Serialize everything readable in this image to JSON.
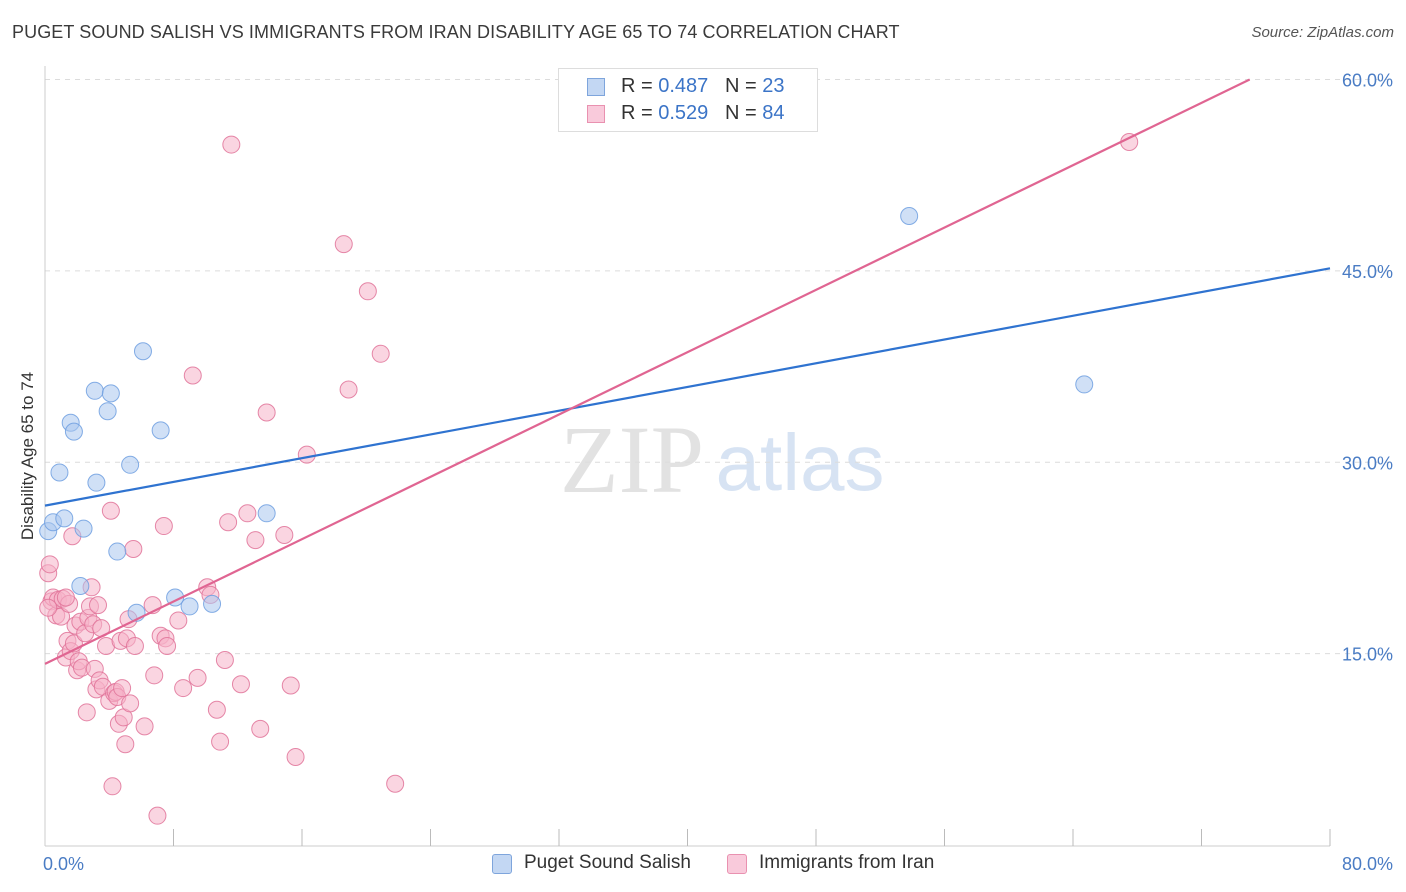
{
  "title": "PUGET SOUND SALISH VS IMMIGRANTS FROM IRAN DISABILITY AGE 65 TO 74 CORRELATION CHART",
  "source": "Source: ZipAtlas.com",
  "watermark": {
    "zip": "ZIP",
    "atlas": "atlas"
  },
  "legend": {
    "rows": [
      {
        "r_label": "R = ",
        "r_value": "0.487",
        "n_label": "N = ",
        "n_value": "23",
        "color": "#a9c6ef"
      },
      {
        "r_label": "R = ",
        "r_value": "0.529",
        "n_label": "N = ",
        "n_value": "84",
        "color": "#f6b3c8"
      }
    ]
  },
  "bottom_legend": [
    "Puget Sound Salish",
    "Immigrants from Iran"
  ],
  "chart_data": {
    "type": "scatter",
    "title": "PUGET SOUND SALISH VS IMMIGRANTS FROM IRAN DISABILITY AGE 65 TO 74 CORRELATION CHART",
    "xlabel": "",
    "ylabel": "Disability Age 65 to 74",
    "xlim": [
      0,
      80
    ],
    "ylim": [
      0,
      60
    ],
    "x_tick_labels": [
      "0.0%",
      "80.0%"
    ],
    "y_ticks": [
      15,
      30,
      45,
      60
    ],
    "y_tick_labels": [
      "15.0%",
      "30.0%",
      "45.0%",
      "60.0%"
    ],
    "grid": true,
    "series": [
      {
        "name": "Puget Sound Salish",
        "color": "#6f9fe0",
        "fill": "#a9c6ef",
        "trend": {
          "x": [
            0,
            80
          ],
          "y": [
            26.6,
            45.2
          ]
        },
        "points": [
          [
            0.2,
            24.6
          ],
          [
            0.5,
            25.3
          ],
          [
            1.2,
            25.6
          ],
          [
            0.9,
            29.2
          ],
          [
            1.6,
            33.1
          ],
          [
            1.8,
            32.4
          ],
          [
            2.4,
            24.8
          ],
          [
            2.2,
            20.3
          ],
          [
            3.1,
            35.6
          ],
          [
            3.2,
            28.4
          ],
          [
            4.1,
            35.4
          ],
          [
            3.9,
            34.0
          ],
          [
            4.5,
            23.0
          ],
          [
            5.3,
            29.8
          ],
          [
            5.7,
            18.2
          ],
          [
            6.1,
            38.7
          ],
          [
            7.2,
            32.5
          ],
          [
            8.1,
            19.4
          ],
          [
            9.0,
            18.7
          ],
          [
            10.4,
            18.9
          ],
          [
            13.8,
            26.0
          ],
          [
            53.8,
            49.3
          ],
          [
            64.7,
            36.1
          ]
        ]
      },
      {
        "name": "Immigrants from Iran",
        "color": "#e07399",
        "fill": "#f6b3c8",
        "trend": {
          "x": [
            0,
            75
          ],
          "y": [
            14.2,
            60
          ]
        },
        "points": [
          [
            0.2,
            21.3
          ],
          [
            0.3,
            22.0
          ],
          [
            0.4,
            19.1
          ],
          [
            0.5,
            19.4
          ],
          [
            0.7,
            18.0
          ],
          [
            0.8,
            19.2
          ],
          [
            1.0,
            17.9
          ],
          [
            1.1,
            19.3
          ],
          [
            1.3,
            14.7
          ],
          [
            1.4,
            16.0
          ],
          [
            1.5,
            18.9
          ],
          [
            1.6,
            15.2
          ],
          [
            1.7,
            24.2
          ],
          [
            1.8,
            15.8
          ],
          [
            1.9,
            17.2
          ],
          [
            2.0,
            13.7
          ],
          [
            2.1,
            14.4
          ],
          [
            2.2,
            17.5
          ],
          [
            2.3,
            13.9
          ],
          [
            2.5,
            16.6
          ],
          [
            2.6,
            10.4
          ],
          [
            2.7,
            17.8
          ],
          [
            2.8,
            18.7
          ],
          [
            2.9,
            20.2
          ],
          [
            3.0,
            17.3
          ],
          [
            3.1,
            13.8
          ],
          [
            3.2,
            12.2
          ],
          [
            3.3,
            18.8
          ],
          [
            3.4,
            12.9
          ],
          [
            3.5,
            17.0
          ],
          [
            3.6,
            12.4
          ],
          [
            3.8,
            15.6
          ],
          [
            4.0,
            11.3
          ],
          [
            4.1,
            26.2
          ],
          [
            4.2,
            4.6
          ],
          [
            4.3,
            11.9
          ],
          [
            4.4,
            12.0
          ],
          [
            4.5,
            11.6
          ],
          [
            4.6,
            9.5
          ],
          [
            4.7,
            16.0
          ],
          [
            4.8,
            12.3
          ],
          [
            4.9,
            10.0
          ],
          [
            5.0,
            7.9
          ],
          [
            5.1,
            16.2
          ],
          [
            5.2,
            17.7
          ],
          [
            5.3,
            11.1
          ],
          [
            5.5,
            23.2
          ],
          [
            5.6,
            15.6
          ],
          [
            6.2,
            9.3
          ],
          [
            6.7,
            18.8
          ],
          [
            6.8,
            13.3
          ],
          [
            7.0,
            2.3
          ],
          [
            7.2,
            16.4
          ],
          [
            7.4,
            25.0
          ],
          [
            7.5,
            16.2
          ],
          [
            7.6,
            15.6
          ],
          [
            8.3,
            17.6
          ],
          [
            8.6,
            12.3
          ],
          [
            9.2,
            36.8
          ],
          [
            9.5,
            13.1
          ],
          [
            10.1,
            20.2
          ],
          [
            10.3,
            19.6
          ],
          [
            10.7,
            10.6
          ],
          [
            10.9,
            8.1
          ],
          [
            11.2,
            14.5
          ],
          [
            11.4,
            25.3
          ],
          [
            11.6,
            54.9
          ],
          [
            12.2,
            12.6
          ],
          [
            12.6,
            26.0
          ],
          [
            13.1,
            23.9
          ],
          [
            13.4,
            9.1
          ],
          [
            13.8,
            33.9
          ],
          [
            14.9,
            24.3
          ],
          [
            15.3,
            12.5
          ],
          [
            15.6,
            6.9
          ],
          [
            16.3,
            30.6
          ],
          [
            18.6,
            47.1
          ],
          [
            18.9,
            35.7
          ],
          [
            20.1,
            43.4
          ],
          [
            20.9,
            38.5
          ],
          [
            21.8,
            4.8
          ],
          [
            67.5,
            55.1
          ],
          [
            0.2,
            18.6
          ],
          [
            1.3,
            19.4
          ]
        ]
      }
    ]
  }
}
